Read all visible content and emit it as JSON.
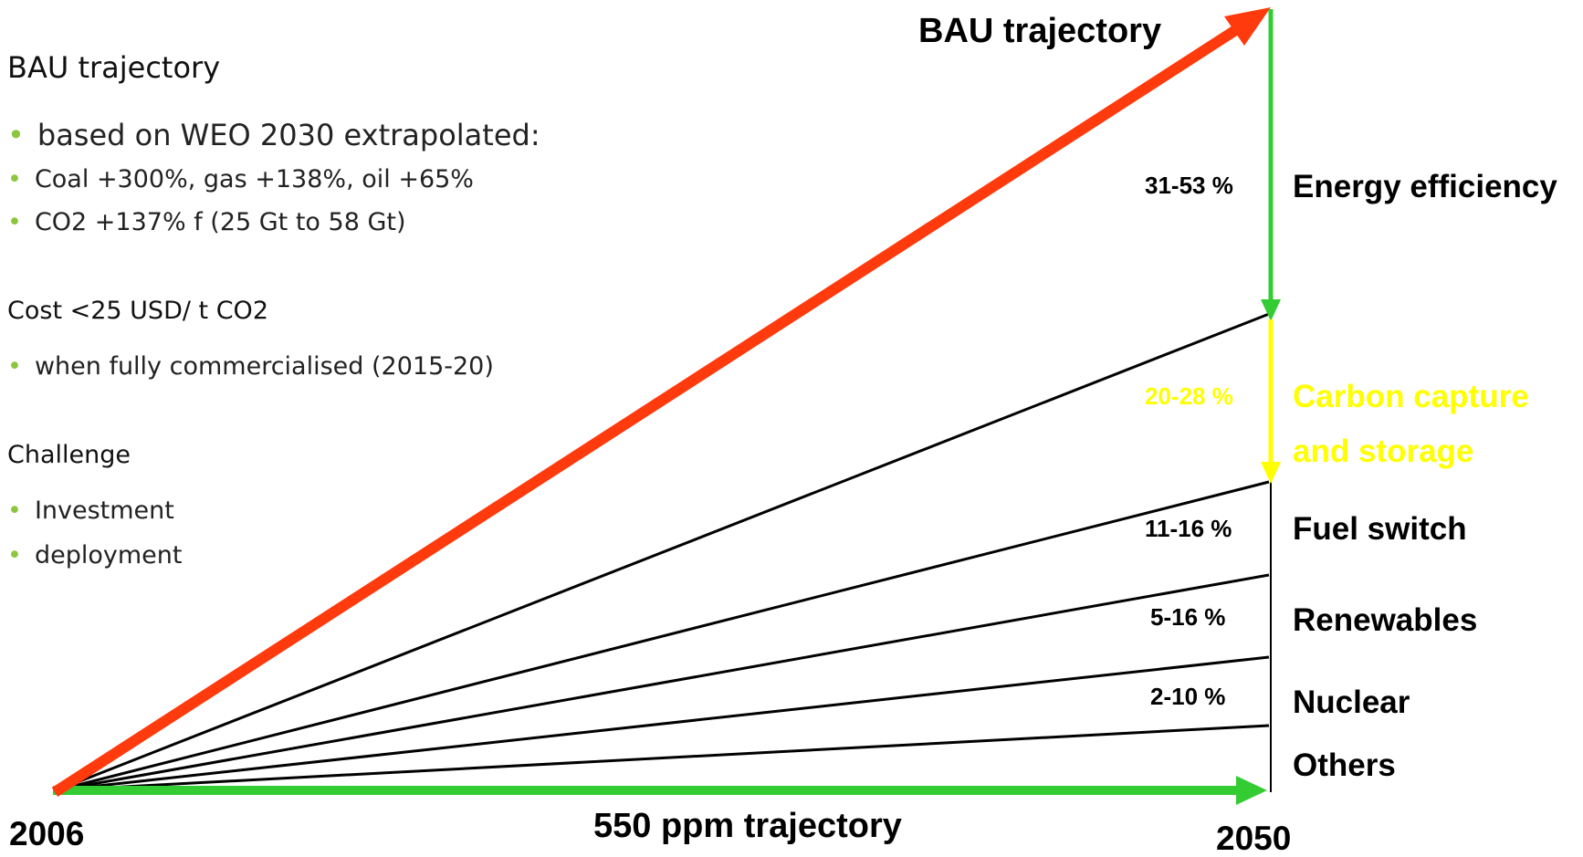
{
  "colors": {
    "bau_arrow": "#ff3a0d",
    "trajectory_arrow": "#33cc33",
    "energy_efficiency_arrow": "#33cc33",
    "ccs_arrow": "#ffff00",
    "ccs_text": "#ffff00",
    "bullet": "#8cc63f",
    "wedge_lines": "#000000"
  },
  "notes": {
    "bau_heading": "BAU trajectory",
    "bau_bullets": [
      "based on WEO 2030 extrapolated:",
      "Coal +300%, gas +138%, oil +65%",
      "CO2 +137% f (25 Gt  to 58 Gt)"
    ],
    "cost_heading": "Cost <25 USD/ t CO2",
    "cost_bullets": [
      "when fully commercialised (2015-20)"
    ],
    "challenge_heading": "Challenge",
    "challenge_bullets": [
      "Investment",
      "deployment"
    ]
  },
  "diagram": {
    "bau_label": "BAU trajectory",
    "trajectory_label": "550 ppm trajectory",
    "start_year": "2006",
    "end_year": "2050",
    "wedges": [
      {
        "name": "Energy efficiency",
        "range": "31-53 %"
      },
      {
        "name": "Carbon capture",
        "name_line2": "and storage",
        "range": "20-28 %"
      },
      {
        "name": "Fuel switch",
        "range": "11-16 %"
      },
      {
        "name": "Renewables",
        "range": "5-16 %"
      },
      {
        "name": "Nuclear",
        "range": "2-10 %"
      },
      {
        "name": "Others"
      }
    ]
  }
}
